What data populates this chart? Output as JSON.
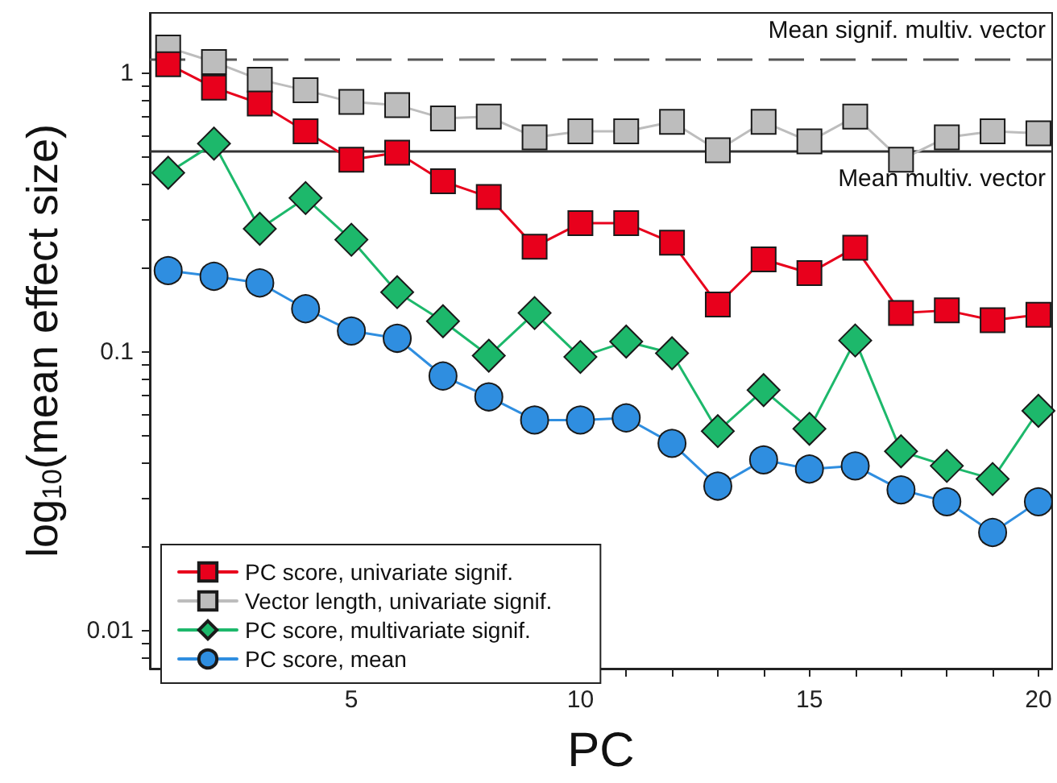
{
  "chart_data": {
    "type": "line",
    "xlabel": "PC",
    "ylabel": "log$_{10}$(mean effect size)",
    "x": [
      1,
      2,
      3,
      4,
      5,
      6,
      7,
      8,
      9,
      10,
      11,
      12,
      13,
      14,
      15,
      16,
      17,
      18,
      19,
      20
    ],
    "series": [
      {
        "name": "PC score, univariate signif.",
        "color": "#e8001c",
        "marker": "square",
        "values": [
          1.08,
          0.89,
          0.78,
          0.62,
          0.49,
          0.52,
          0.41,
          0.36,
          0.239,
          0.29,
          0.29,
          0.247,
          0.148,
          0.215,
          0.192,
          0.237,
          0.138,
          0.141,
          0.13,
          0.136
        ]
      },
      {
        "name": "Vector length, univariate signif.",
        "color": "#bdbdbd",
        "marker": "square",
        "values": [
          1.24,
          1.1,
          0.95,
          0.87,
          0.79,
          0.77,
          0.69,
          0.7,
          0.59,
          0.62,
          0.62,
          0.67,
          0.53,
          0.67,
          0.57,
          0.7,
          0.49,
          0.59,
          0.62,
          0.61
        ]
      },
      {
        "name": "PC score, multivariate signif.",
        "color": "#1db86b",
        "marker": "diamond",
        "values": [
          0.44,
          0.56,
          0.277,
          0.357,
          0.253,
          0.164,
          0.129,
          0.097,
          0.138,
          0.096,
          0.109,
          0.099,
          0.052,
          0.073,
          0.053,
          0.11,
          0.044,
          0.039,
          0.035,
          0.0615
        ]
      },
      {
        "name": "PC score, mean",
        "color": "#2f8ee0",
        "marker": "circle",
        "values": [
          0.196,
          0.187,
          0.177,
          0.143,
          0.119,
          0.112,
          0.082,
          0.069,
          0.057,
          0.057,
          0.058,
          0.047,
          0.033,
          0.041,
          0.038,
          0.039,
          0.032,
          0.029,
          0.0225,
          0.029
        ]
      }
    ],
    "ref_lines": [
      {
        "axis": "y",
        "value": 1.13,
        "label": "Mean signif. multiv. vector",
        "color": "#555555",
        "line_style": "dashed"
      },
      {
        "axis": "y",
        "value": 0.53,
        "label": "Mean multiv. vector",
        "color": "#333333",
        "line_style": "solid"
      }
    ],
    "log": "y",
    "xlim": [
      0.6,
      20.3
    ],
    "ylim": [
      0.0073,
      1.65
    ],
    "xticks": [
      {
        "value": 1,
        "label": null
      },
      {
        "value": 2,
        "label": null
      },
      {
        "value": 3,
        "label": null
      },
      {
        "value": 4,
        "label": null
      },
      5,
      {
        "value": 6,
        "label": null
      },
      {
        "value": 7,
        "label": null
      },
      {
        "value": 8,
        "label": null
      },
      {
        "value": 9,
        "label": null
      },
      10,
      {
        "value": 11,
        "label": null
      },
      {
        "value": 12,
        "label": null
      },
      {
        "value": 13,
        "label": null
      },
      {
        "value": 14,
        "label": null
      },
      15,
      {
        "value": 16,
        "label": null
      },
      {
        "value": 17,
        "label": null
      },
      {
        "value": 18,
        "label": null
      },
      {
        "value": 19,
        "label": null
      },
      20
    ],
    "yticks": [
      {
        "value": 0.008,
        "label": null
      },
      {
        "value": 0.009,
        "label": null
      },
      0.01,
      {
        "value": 0.02,
        "label": null
      },
      {
        "value": 0.03,
        "label": null
      },
      {
        "value": 0.04,
        "label": null
      },
      {
        "value": 0.05,
        "label": null
      },
      {
        "value": 0.06,
        "label": null
      },
      {
        "value": 0.07,
        "label": null
      },
      {
        "value": 0.08,
        "label": null
      },
      {
        "value": 0.09,
        "label": null
      },
      0.1,
      {
        "value": 0.2,
        "label": null
      },
      {
        "value": 0.3,
        "label": null
      },
      {
        "value": 0.4,
        "label": null
      },
      {
        "value": 0.5,
        "label": null
      },
      {
        "value": 0.6,
        "label": null
      },
      {
        "value": 0.7,
        "label": null
      },
      {
        "value": 0.8,
        "label": null
      },
      {
        "value": 0.9,
        "label": null
      },
      1
    ],
    "legend": "bottom left",
    "grid": false
  }
}
